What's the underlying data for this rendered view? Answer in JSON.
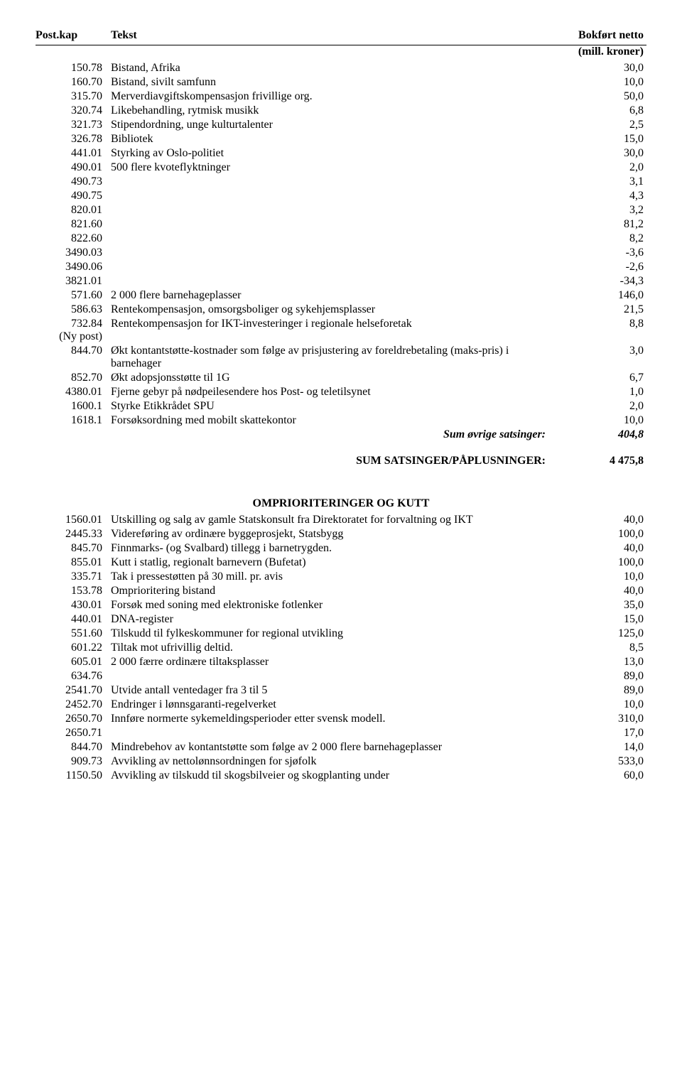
{
  "headers": {
    "kap": "Post.kap",
    "tekst": "Tekst",
    "val": "Bokført netto",
    "val2": "(mill. kroner)"
  },
  "rows1": [
    {
      "kap": "150.78",
      "tekst": "Bistand, Afrika",
      "val": "30,0"
    },
    {
      "kap": "160.70",
      "tekst": "Bistand, sivilt samfunn",
      "val": "10,0"
    },
    {
      "kap": "315.70",
      "tekst": "Merverdiavgiftskompensasjon frivillige org.",
      "val": "50,0"
    },
    {
      "kap": "320.74",
      "tekst": "Likebehandling, rytmisk musikk",
      "val": "6,8"
    },
    {
      "kap": "321.73",
      "tekst": "Stipendordning, unge kulturtalenter",
      "val": "2,5"
    },
    {
      "kap": "326.78",
      "tekst": "Bibliotek",
      "val": "15,0"
    },
    {
      "kap": "441.01",
      "tekst": "Styrking av Oslo-politiet",
      "val": "30,0"
    },
    {
      "kap": "490.01",
      "tekst": "500 flere kvoteflyktninger",
      "val": "2,0"
    },
    {
      "kap": "490.73",
      "tekst": "",
      "val": "3,1"
    },
    {
      "kap": "490.75",
      "tekst": "",
      "val": "4,3"
    },
    {
      "kap": "820.01",
      "tekst": "",
      "val": "3,2"
    },
    {
      "kap": "821.60",
      "tekst": "",
      "val": "81,2"
    },
    {
      "kap": "822.60",
      "tekst": "",
      "val": "8,2"
    },
    {
      "kap": "3490.03",
      "tekst": "",
      "val": "-3,6"
    },
    {
      "kap": "3490.06",
      "tekst": "",
      "val": "-2,6"
    },
    {
      "kap": "3821.01",
      "tekst": "",
      "val": "-34,3"
    },
    {
      "kap": "571.60",
      "tekst": "2 000 flere barnehageplasser",
      "val": "146,0"
    },
    {
      "kap": "586.63",
      "tekst": "Rentekompensasjon, omsorgsboliger og sykehjemsplasser",
      "val": "21,5"
    },
    {
      "kap": "732.84\n(Ny post)",
      "tekst": "Rentekompensasjon for IKT-investeringer i regionale helseforetak",
      "val": "8,8"
    },
    {
      "kap": "844.70",
      "tekst": "Økt kontantstøtte-kostnader som følge av prisjustering av foreldrebetaling (maks-pris) i barnehager",
      "val": "3,0"
    },
    {
      "kap": "852.70",
      "tekst": "Økt adopsjonsstøtte til 1G",
      "val": "6,7"
    },
    {
      "kap": "4380.01",
      "tekst": "Fjerne gebyr på nødpeilesendere hos Post- og teletilsynet",
      "val": "1,0"
    },
    {
      "kap": "1600.1",
      "tekst": "Styrke Etikkrådet SPU",
      "val": "2,0"
    },
    {
      "kap": "1618.1",
      "tekst": "Forsøksordning med mobilt skattekontor",
      "val": "10,0"
    }
  ],
  "sum1": {
    "label": "Sum øvrige satsinger:",
    "val": "404,8"
  },
  "grand": {
    "label": "SUM SATSINGER/PÅPLUSNINGER:",
    "val": "4 475,8"
  },
  "section2_title": "OMPRIORITERINGER OG KUTT",
  "rows2": [
    {
      "kap": "1560.01",
      "tekst": "Utskilling og salg av gamle Statskonsult fra Direktoratet for forvaltning og IKT",
      "val": "40,0"
    },
    {
      "kap": "2445.33",
      "tekst": "Videreføring av ordinære byggeprosjekt, Statsbygg",
      "val": "100,0"
    },
    {
      "kap": "845.70",
      "tekst": "Finnmarks- (og Svalbard) tillegg i barnetrygden.",
      "val": "40,0"
    },
    {
      "kap": "855.01",
      "tekst": "Kutt i statlig, regionalt barnevern (Bufetat)",
      "val": "100,0"
    },
    {
      "kap": "335.71",
      "tekst": "Tak i pressestøtten på 30 mill. pr. avis",
      "val": "10,0"
    },
    {
      "kap": "153.78",
      "tekst": "Omprioritering bistand",
      "val": "40,0"
    },
    {
      "kap": "430.01",
      "tekst": "Forsøk med soning med elektroniske fotlenker",
      "val": "35,0"
    },
    {
      "kap": "440.01",
      "tekst": "DNA-register",
      "val": "15,0"
    },
    {
      "kap": "551.60",
      "tekst": "Tilskudd til fylkeskommuner for regional utvikling",
      "val": "125,0"
    },
    {
      "kap": "601.22",
      "tekst": "Tiltak mot ufrivillig deltid.",
      "val": "8,5"
    },
    {
      "kap": "605.01",
      "tekst": "2 000 færre ordinære tiltaksplasser",
      "val": "13,0"
    },
    {
      "kap": "634.76",
      "tekst": "",
      "val": "89,0"
    },
    {
      "kap": "2541.70",
      "tekst": "Utvide antall ventedager fra 3 til 5",
      "val": "89,0"
    },
    {
      "kap": "2452.70",
      "tekst": "Endringer i lønnsgaranti-regelverket",
      "val": "10,0"
    },
    {
      "kap": "2650.70",
      "tekst": "Innføre normerte sykemeldingsperioder etter svensk modell.",
      "val": "310,0"
    },
    {
      "kap": "2650.71",
      "tekst": "",
      "val": "17,0"
    },
    {
      "kap": "844.70",
      "tekst": "Mindrebehov av kontantstøtte som følge av 2 000 flere barnehageplasser",
      "val": "14,0"
    },
    {
      "kap": "909.73",
      "tekst": "Avvikling av nettolønnsordningen for sjøfolk",
      "val": "533,0"
    },
    {
      "kap": "1150.50",
      "tekst": "Avvikling av tilskudd til skogsbilveier og skogplanting under",
      "val": "60,0"
    }
  ]
}
